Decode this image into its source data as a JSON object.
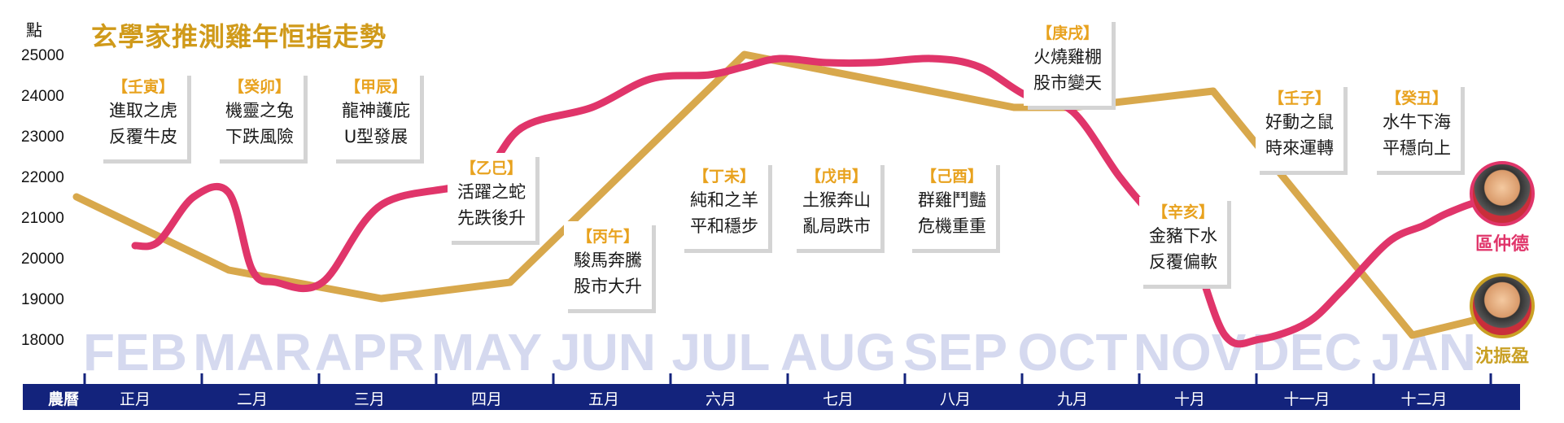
{
  "title": "玄學家推測雞年恒指走勢",
  "unit_label": "點",
  "lunar_label": "農曆",
  "colors": {
    "background": "#ffffff",
    "title": "#d09a1a",
    "series_pink": "#e0356a",
    "series_gold": "#d8a84c",
    "month_bg": "#d5d9ef",
    "band": "#13237c",
    "band_text": "#ffffff",
    "stem": "#e8a21e"
  },
  "chart_data": {
    "type": "line",
    "title": "玄學家推測雞年恒指走勢",
    "ylabel": "點",
    "ylim": [
      17000,
      25500
    ],
    "yticks": [
      18000,
      19000,
      20000,
      21000,
      22000,
      23000,
      24000,
      25000
    ],
    "categories": [
      "FEB",
      "MAR",
      "APR",
      "MAY",
      "JUN",
      "JUL",
      "AUG",
      "SEP",
      "OCT",
      "NOV",
      "DEC",
      "JAN"
    ],
    "lunar_months": [
      "正月",
      "二月",
      "三月",
      "四月",
      "五月",
      "六月",
      "七月",
      "八月",
      "九月",
      "十月",
      "十一月",
      "十二月"
    ],
    "series": [
      {
        "name": "區仲德",
        "color": "#e0356a",
        "x": [
          0,
          0.2,
          0.5,
          0.8,
          1.0,
          1.2,
          1.6,
          2.1,
          2.9,
          3.3,
          3.9,
          4.4,
          4.9,
          5.2,
          5.5,
          5.9,
          6.3,
          6.8,
          7.2,
          7.6,
          8.0,
          8.4,
          8.7,
          9.0,
          9.3,
          9.6,
          10.0,
          10.3,
          10.7,
          11.0,
          11.2,
          11.5,
          11.8
        ],
        "values": [
          20300,
          20400,
          21500,
          21600,
          19700,
          19400,
          19400,
          21300,
          21900,
          23200,
          23700,
          24400,
          24500,
          24700,
          24900,
          24800,
          24800,
          24900,
          24700,
          24000,
          23600,
          22000,
          21000,
          20300,
          18100,
          18000,
          18400,
          19200,
          20400,
          20800,
          21100,
          21400,
          21400
        ]
      },
      {
        "name": "沈振盈",
        "color": "#d8a84c",
        "x": [
          -0.5,
          0.8,
          2.1,
          3.2,
          5.2,
          7.5,
          8.0,
          9.2,
          10.9,
          11.9
        ],
        "values": [
          21500,
          19700,
          19000,
          19400,
          25000,
          23700,
          23700,
          24100,
          18100,
          18800
        ]
      }
    ]
  },
  "callouts": [
    {
      "stem": "【壬寅】",
      "l1": "進取之虎",
      "l2": "反覆牛皮"
    },
    {
      "stem": "【癸卯】",
      "l1": "機靈之兔",
      "l2": "下跌風險"
    },
    {
      "stem": "【甲辰】",
      "l1": "龍神護庇",
      "l2": "U型發展"
    },
    {
      "stem": "【乙巳】",
      "l1": "活躍之蛇",
      "l2": "先跌後升"
    },
    {
      "stem": "【丙午】",
      "l1": "駿馬奔騰",
      "l2": "股市大升"
    },
    {
      "stem": "【丁未】",
      "l1": "純和之羊",
      "l2": "平和穩步"
    },
    {
      "stem": "【戊申】",
      "l1": "土猴奔山",
      "l2": "亂局跌市"
    },
    {
      "stem": "【己酉】",
      "l1": "群雞鬥豔",
      "l2": "危機重重"
    },
    {
      "stem": "【庚戌】",
      "l1": "火燒雞棚",
      "l2": "股市變天"
    },
    {
      "stem": "【辛亥】",
      "l1": "金豬下水",
      "l2": "反覆偏軟"
    },
    {
      "stem": "【壬子】",
      "l1": "好動之鼠",
      "l2": "時來運轉"
    },
    {
      "stem": "【癸丑】",
      "l1": "水牛下海",
      "l2": "平穩向上"
    }
  ],
  "persons": [
    {
      "name": "區仲德",
      "color": "#e0356a"
    },
    {
      "name": "沈振盈",
      "color": "#c9a024"
    }
  ]
}
